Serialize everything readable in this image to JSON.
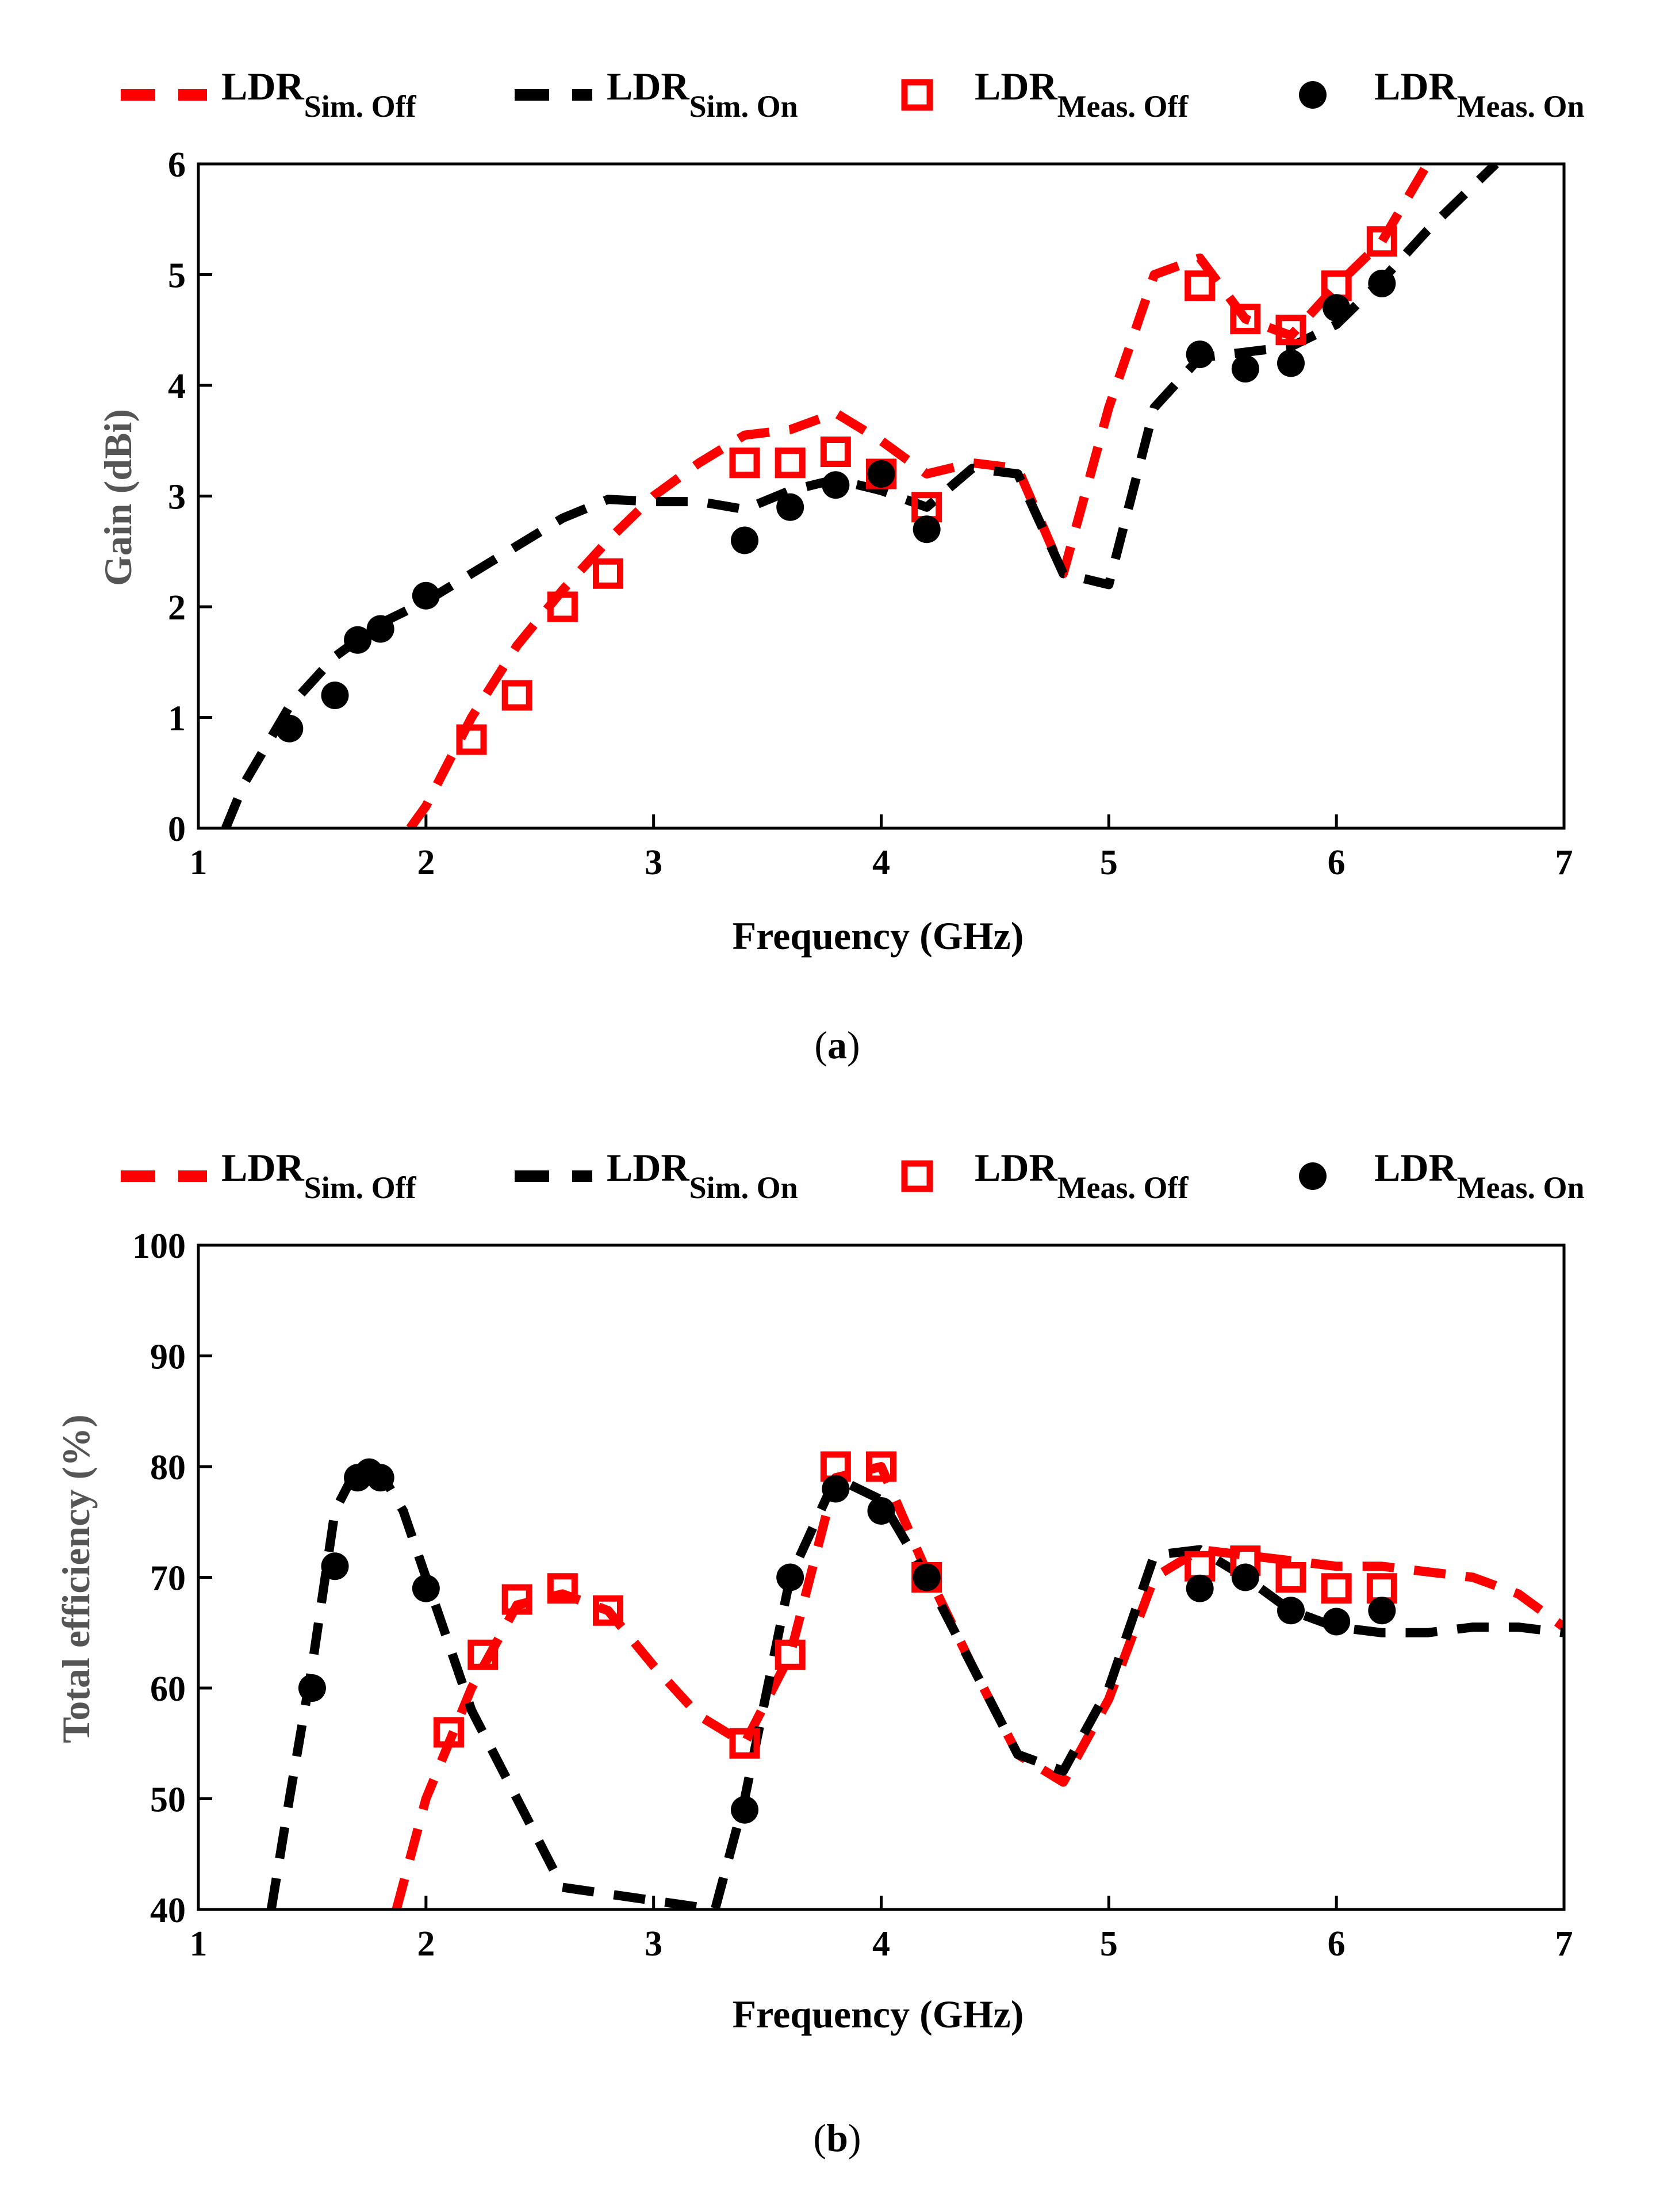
{
  "chart_data": [
    {
      "type": "line",
      "panel_caption": {
        "open": "(",
        "letter": "a",
        "close": ")"
      },
      "xlabel": "Frequency (GHz)",
      "ylabel": "Gain (dBi)",
      "xlim": [
        1,
        7
      ],
      "ylim": [
        0,
        6
      ],
      "xticks": [
        "1",
        "2",
        "3",
        "4",
        "5",
        "6",
        "7"
      ],
      "yticks": [
        "0",
        "1",
        "2",
        "3",
        "4",
        "5",
        "6"
      ],
      "grid": false,
      "legend": {
        "position": "top",
        "entries": [
          {
            "main": "LDR",
            "sub": "Sim. Off",
            "style": "dashed",
            "color": "#ff0000"
          },
          {
            "main": "LDR",
            "sub": "Sim. On",
            "style": "dashed",
            "color": "#000000"
          },
          {
            "main": "LDR",
            "sub": "Meas. Off",
            "style": "open-square",
            "color": "#ff0000"
          },
          {
            "main": "LDR",
            "sub": "Meas. On",
            "style": "filled-circle",
            "color": "#000000"
          }
        ]
      },
      "series": [
        {
          "name": "LDR Sim. Off",
          "style": "dashed",
          "color": "#ff0000",
          "x": [
            1.93,
            2.0,
            2.2,
            2.4,
            2.6,
            2.8,
            3.0,
            3.2,
            3.4,
            3.6,
            3.8,
            4.0,
            4.2,
            4.4,
            4.6,
            4.8,
            5.0,
            5.2,
            5.4,
            5.6,
            5.8,
            6.0,
            6.2,
            6.4
          ],
          "y": [
            0,
            0.2,
            1.0,
            1.65,
            2.15,
            2.6,
            3.0,
            3.3,
            3.55,
            3.6,
            3.75,
            3.5,
            3.2,
            3.3,
            3.25,
            2.3,
            3.8,
            5.0,
            5.15,
            4.6,
            4.45,
            4.9,
            5.3,
            6.0
          ]
        },
        {
          "name": "LDR Sim. On",
          "style": "dashed",
          "color": "#000000",
          "x": [
            1.12,
            1.2,
            1.4,
            1.6,
            1.8,
            2.0,
            2.2,
            2.4,
            2.6,
            2.8,
            3.0,
            3.2,
            3.4,
            3.6,
            3.8,
            4.0,
            4.2,
            4.4,
            4.6,
            4.8,
            5.0,
            5.2,
            5.4,
            5.6,
            5.8,
            6.0,
            6.2,
            6.4,
            6.7
          ],
          "y": [
            0,
            0.4,
            1.1,
            1.55,
            1.85,
            2.05,
            2.3,
            2.55,
            2.8,
            2.97,
            2.95,
            2.95,
            2.88,
            3.05,
            3.15,
            3.05,
            2.9,
            3.25,
            3.2,
            2.3,
            2.2,
            3.8,
            4.25,
            4.3,
            4.35,
            4.55,
            4.95,
            5.4,
            6.0
          ]
        },
        {
          "name": "LDR Meas. Off",
          "style": "open-square",
          "color": "#ff0000",
          "x": [
            2.2,
            2.4,
            2.6,
            2.8,
            3.4,
            3.6,
            3.8,
            4.0,
            4.2,
            5.4,
            5.6,
            5.8,
            6.0,
            6.2
          ],
          "y": [
            0.8,
            1.2,
            2.0,
            2.3,
            3.3,
            3.3,
            3.4,
            3.2,
            2.9,
            4.9,
            4.6,
            4.5,
            4.9,
            5.3
          ]
        },
        {
          "name": "LDR Meas. On",
          "style": "filled-circle",
          "color": "#000000",
          "x": [
            1.4,
            1.6,
            1.7,
            1.8,
            2.0,
            3.4,
            3.6,
            3.8,
            4.0,
            4.2,
            5.4,
            5.6,
            5.8,
            6.0,
            6.2
          ],
          "y": [
            0.9,
            1.2,
            1.7,
            1.8,
            2.1,
            2.6,
            2.9,
            3.1,
            3.2,
            2.7,
            4.28,
            4.15,
            4.2,
            4.7,
            4.92
          ]
        }
      ]
    },
    {
      "type": "line",
      "panel_caption": {
        "open": "(",
        "letter": "b",
        "close": ")"
      },
      "xlabel": "Frequency (GHz)",
      "ylabel": "Total efficiency (%)",
      "xlim": [
        1,
        7
      ],
      "ylim": [
        40,
        100
      ],
      "xticks": [
        "1",
        "2",
        "3",
        "4",
        "5",
        "6",
        "7"
      ],
      "yticks": [
        "40",
        "50",
        "60",
        "70",
        "80",
        "90",
        "100"
      ],
      "grid": false,
      "legend": {
        "position": "top",
        "entries": [
          {
            "main": "LDR",
            "sub": "Sim. Off",
            "style": "dashed",
            "color": "#ff0000"
          },
          {
            "main": "LDR",
            "sub": "Sim. On",
            "style": "dashed",
            "color": "#000000"
          },
          {
            "main": "LDR",
            "sub": "Meas. Off",
            "style": "open-square",
            "color": "#ff0000"
          },
          {
            "main": "LDR",
            "sub": "Meas. On",
            "style": "filled-circle",
            "color": "#000000"
          }
        ]
      },
      "series": [
        {
          "name": "LDR Sim. Off",
          "style": "dashed",
          "color": "#ff0000",
          "x": [
            1.87,
            2.0,
            2.2,
            2.4,
            2.6,
            2.8,
            3.0,
            3.2,
            3.4,
            3.6,
            3.8,
            4.0,
            4.2,
            4.4,
            4.6,
            4.8,
            5.0,
            5.2,
            5.4,
            5.6,
            5.8,
            6.0,
            6.2,
            6.4,
            6.6,
            6.8,
            7.0
          ],
          "y": [
            40,
            50,
            60,
            67.5,
            68.5,
            67,
            62,
            57.5,
            55,
            63,
            79,
            80,
            70.5,
            62,
            54,
            51.5,
            59,
            70,
            72.5,
            72,
            71.5,
            71,
            71,
            70.5,
            70,
            68.5,
            65.5
          ]
        },
        {
          "name": "LDR Sim. On",
          "style": "dashed",
          "color": "#000000",
          "x": [
            1.32,
            1.4,
            1.5,
            1.6,
            1.7,
            1.8,
            1.9,
            2.0,
            2.1,
            2.2,
            2.4,
            2.6,
            3.27,
            3.4,
            3.6,
            3.8,
            4.0,
            4.2,
            4.4,
            4.6,
            4.8,
            5.0,
            5.2,
            5.4,
            5.6,
            5.8,
            6.0,
            6.2,
            6.4,
            6.6,
            6.8,
            7.0
          ],
          "y": [
            40,
            50,
            62,
            76,
            80,
            79.5,
            76,
            70,
            64,
            58,
            50,
            42,
            40,
            50,
            70,
            79,
            77,
            70,
            62,
            54,
            52.5,
            60,
            72,
            72.5,
            70,
            67,
            65.5,
            65,
            65,
            65.5,
            65.5,
            65
          ]
        },
        {
          "name": "LDR Meas. Off",
          "style": "open-square",
          "color": "#ff0000",
          "x": [
            2.1,
            2.25,
            2.4,
            2.6,
            2.8,
            3.4,
            3.6,
            3.8,
            4.0,
            4.2,
            5.4,
            5.6,
            5.8,
            6.0,
            6.2
          ],
          "y": [
            56,
            63,
            68,
            69,
            67,
            55,
            63,
            80,
            80,
            70,
            71,
            71.5,
            70,
            69,
            69
          ]
        },
        {
          "name": "LDR Meas. On",
          "style": "filled-circle",
          "color": "#000000",
          "x": [
            1.5,
            1.6,
            1.7,
            1.75,
            1.8,
            2.0,
            3.4,
            3.6,
            3.8,
            4.0,
            4.2,
            5.4,
            5.6,
            5.8,
            6.0,
            6.2
          ],
          "y": [
            60,
            71,
            79,
            79.5,
            79,
            69,
            49,
            70,
            78,
            76,
            70,
            69,
            70,
            67,
            66,
            67
          ]
        }
      ]
    }
  ]
}
